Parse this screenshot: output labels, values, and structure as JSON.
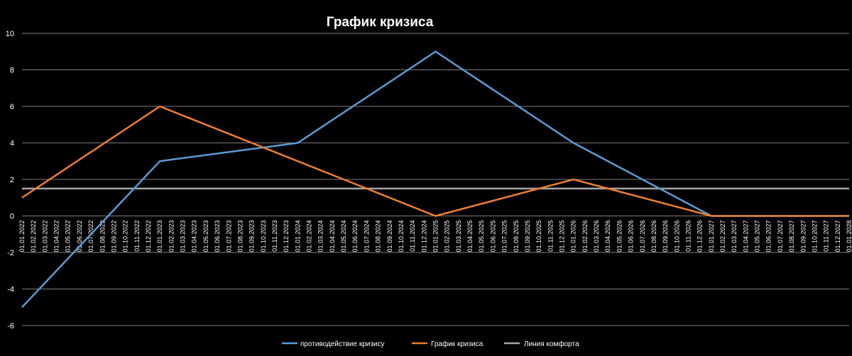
{
  "chart_data": {
    "type": "line",
    "title": "График кризиса",
    "xlabel": "",
    "ylabel": "",
    "ylim": [
      -6,
      10
    ],
    "yticks": [
      -6,
      -4,
      -2,
      0,
      2,
      4,
      6,
      8,
      10
    ],
    "grid": true,
    "legend_position": "bottom",
    "background": "#000000",
    "gridline_color": "#7f7f7f",
    "x": [
      "01.01.2022",
      "01.02.2022",
      "01.03.2022",
      "01.04.2022",
      "01.05.2022",
      "01.06.2022",
      "01.07.2022",
      "01.08.2022",
      "01.09.2022",
      "01.10.2022",
      "01.11.2022",
      "01.12.2022",
      "01.01.2023",
      "01.02.2023",
      "01.03.2023",
      "01.04.2023",
      "01.05.2023",
      "01.06.2023",
      "01.07.2023",
      "01.08.2023",
      "01.09.2023",
      "01.10.2023",
      "01.11.2023",
      "01.12.2023",
      "01.01.2024",
      "01.02.2024",
      "01.03.2024",
      "01.04.2024",
      "01.05.2024",
      "01.06.2024",
      "01.07.2024",
      "01.08.2024",
      "01.09.2024",
      "01.10.2024",
      "01.11.2024",
      "01.12.2024",
      "01.01.2025",
      "01.02.2025",
      "01.03.2025",
      "01.04.2025",
      "01.05.2025",
      "01.06.2025",
      "01.07.2025",
      "01.08.2025",
      "01.09.2025",
      "01.10.2025",
      "01.11.2025",
      "01.12.2025",
      "01.01.2026",
      "01.02.2026",
      "01.03.2026",
      "01.04.2026",
      "01.05.2026",
      "01.06.2026",
      "01.07.2026",
      "01.08.2026",
      "01.09.2026",
      "01.10.2026",
      "01.11.2026",
      "01.12.2026",
      "01.01.2027",
      "01.02.2027",
      "01.03.2027",
      "01.04.2027",
      "01.05.2027",
      "01.06.2027",
      "01.07.2027",
      "01.08.2027",
      "01.09.2027",
      "01.10.2027",
      "01.11.2027",
      "01.12.2027",
      "01.01.2028"
    ],
    "series": [
      {
        "name": "противодействие кризису",
        "color": "#5b9bd5",
        "points": [
          {
            "x": "01.01.2022",
            "y": -5
          },
          {
            "x": "01.01.2023",
            "y": 3
          },
          {
            "x": "01.01.2024",
            "y": 4
          },
          {
            "x": "01.01.2025",
            "y": 9
          },
          {
            "x": "01.01.2026",
            "y": 4
          },
          {
            "x": "01.01.2027",
            "y": 0
          },
          {
            "x": "01.01.2028",
            "y": 0
          }
        ]
      },
      {
        "name": "График кризиса",
        "color": "#ed7d31",
        "points": [
          {
            "x": "01.01.2022",
            "y": 1
          },
          {
            "x": "01.01.2023",
            "y": 6
          },
          {
            "x": "01.01.2025",
            "y": 0
          },
          {
            "x": "01.01.2026",
            "y": 2
          },
          {
            "x": "01.01.2027",
            "y": 0
          },
          {
            "x": "01.01.2028",
            "y": 0
          }
        ]
      },
      {
        "name": "Линия комфорта",
        "color": "#a5a5a5",
        "points": [
          {
            "x": "01.01.2022",
            "y": 1.5
          },
          {
            "x": "01.01.2028",
            "y": 1.5
          }
        ]
      }
    ]
  }
}
